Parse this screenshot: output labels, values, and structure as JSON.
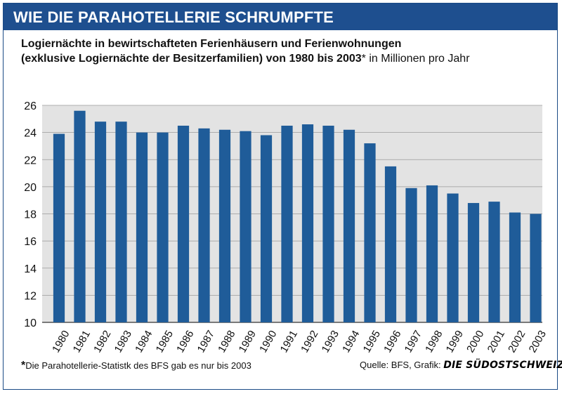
{
  "header": {
    "title": "WIE DIE PARAHOTELLERIE SCHRUMPFTE"
  },
  "subtitle": {
    "line1": "Logiernächte in bewirtschafteten Ferienhäusern und Ferienwohnungen",
    "line2_bold": "(exklusive Logiernächte der Besitzerfamilien) von 1980 bis 2003",
    "line2_star": "*",
    "line2_regular": " in Millionen pro Jahr"
  },
  "footer": {
    "footnote_star": "*",
    "footnote_text": "Die Parahotellerie-Statistk des BFS gab es nur bis 2003",
    "source_prefix": "Quelle: BFS, Grafik: ",
    "source_brand": "DIE SÜDOSTSCHWEIZ"
  },
  "colors": {
    "header_bg": "#1e4f8f",
    "bar": "#1f5c99",
    "plot_bg": "#e3e3e3",
    "grid": "#9a9a9a"
  },
  "chart_data": {
    "type": "bar",
    "categories": [
      "1980",
      "1981",
      "1982",
      "1983",
      "1984",
      "1985",
      "1986",
      "1987",
      "1988",
      "1989",
      "1990",
      "1991",
      "1992",
      "1993",
      "1994",
      "1995",
      "1996",
      "1997",
      "1998",
      "1999",
      "2000",
      "2001",
      "2002",
      "2003"
    ],
    "values": [
      23.9,
      25.6,
      24.8,
      24.8,
      24.0,
      24.0,
      24.5,
      24.3,
      24.2,
      24.1,
      23.8,
      24.5,
      24.6,
      24.5,
      24.2,
      23.2,
      21.5,
      19.9,
      20.1,
      19.5,
      18.8,
      18.9,
      18.1,
      18.0
    ],
    "ylim": [
      10,
      26
    ],
    "yticks": [
      "10",
      "12",
      "14",
      "16",
      "18",
      "20",
      "22",
      "24",
      "26"
    ],
    "grid": true,
    "legend": "none"
  }
}
